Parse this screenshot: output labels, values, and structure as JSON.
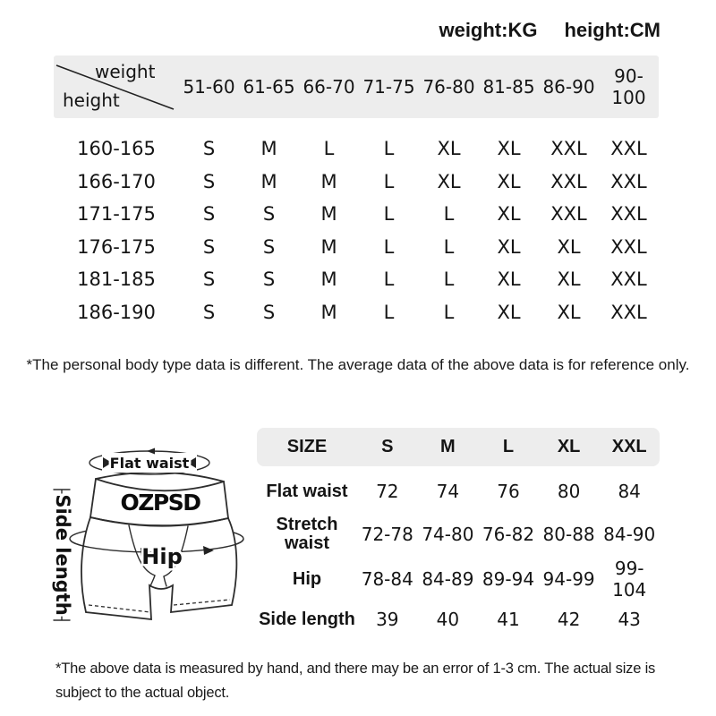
{
  "units": {
    "weight": "weight:KG",
    "height": "height:CM"
  },
  "size_chart": {
    "corner": {
      "top": "weight",
      "bottom": "height"
    },
    "weight_columns": [
      "51-60",
      "61-65",
      "66-70",
      "71-75",
      "76-80",
      "81-85",
      "86-90",
      "90-100"
    ],
    "rows": [
      {
        "height": "160-165",
        "sizes": [
          "S",
          "M",
          "L",
          "L",
          "XL",
          "XL",
          "XXL",
          "XXL"
        ]
      },
      {
        "height": "166-170",
        "sizes": [
          "S",
          "M",
          "M",
          "L",
          "XL",
          "XL",
          "XXL",
          "XXL"
        ]
      },
      {
        "height": "171-175",
        "sizes": [
          "S",
          "S",
          "M",
          "L",
          "L",
          "XL",
          "XXL",
          "XXL"
        ]
      },
      {
        "height": "176-175",
        "sizes": [
          "S",
          "S",
          "M",
          "L",
          "L",
          "XL",
          "XL",
          "XXL"
        ]
      },
      {
        "height": "181-185",
        "sizes": [
          "S",
          "S",
          "M",
          "L",
          "L",
          "XL",
          "XL",
          "XXL"
        ]
      },
      {
        "height": "186-190",
        "sizes": [
          "S",
          "S",
          "M",
          "L",
          "L",
          "XL",
          "XL",
          "XXL"
        ]
      }
    ],
    "note": "*The personal body type data is different. The average data of the above data is for reference only."
  },
  "measurements": {
    "header": [
      "SIZE",
      "S",
      "M",
      "L",
      "XL",
      "XXL"
    ],
    "rows": [
      {
        "label": "Flat waist",
        "values": [
          "72",
          "74",
          "76",
          "80",
          "84"
        ]
      },
      {
        "label": "Stretch waist",
        "values": [
          "72-78",
          "74-80",
          "76-82",
          "80-88",
          "84-90"
        ]
      },
      {
        "label": "Hip",
        "values": [
          "78-84",
          "84-89",
          "89-94",
          "94-99",
          "99-104"
        ]
      },
      {
        "label": "Side length",
        "values": [
          "39",
          "40",
          "41",
          "42",
          "43"
        ]
      }
    ],
    "note": "*The above data is measured by hand, and there may be an error of 1-3 cm. The actual size is subject to the actual object."
  },
  "diagram": {
    "brand": "OZPSD",
    "labels": {
      "flat_waist": "Flat waist",
      "hip": "Hip",
      "side_length": "Side length"
    }
  },
  "colors": {
    "header_band": "#ededed",
    "text": "#151515"
  }
}
